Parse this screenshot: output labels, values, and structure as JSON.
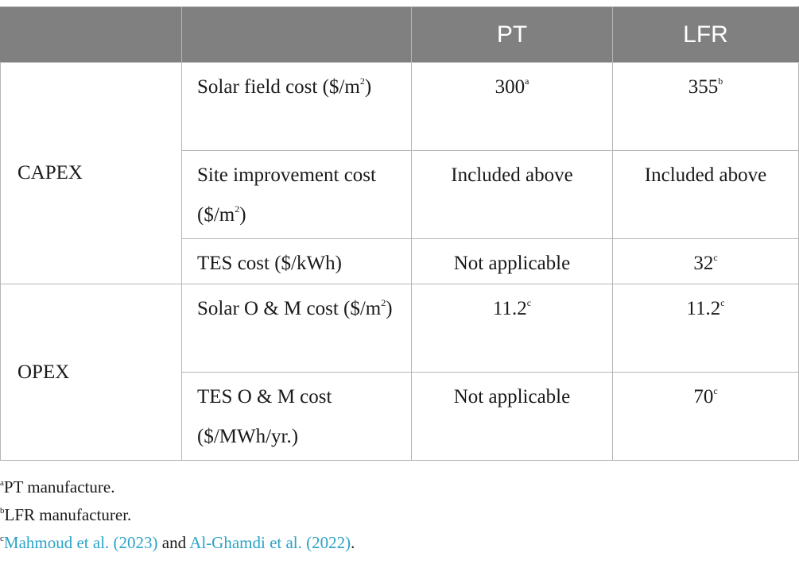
{
  "table": {
    "header": [
      "",
      "",
      "PT",
      "LFR"
    ],
    "groups": [
      {
        "label": "CAPEX",
        "rows": [
          {
            "item": "Solar field cost ($/m",
            "item_sup": "2",
            "item_tail": ")",
            "pt": "300",
            "pt_sup": "a",
            "lfr": "355",
            "lfr_sup": "b"
          },
          {
            "item": "Site improvement cost ($/m",
            "item_sup": "2",
            "item_tail": ")",
            "pt": "Included above",
            "pt_sup": "",
            "lfr": "Included above",
            "lfr_sup": ""
          },
          {
            "item": "TES cost ($/kWh)",
            "item_sup": "",
            "item_tail": "",
            "pt": "Not applicable",
            "pt_sup": "",
            "lfr": "32",
            "lfr_sup": "c"
          }
        ]
      },
      {
        "label": "OPEX",
        "rows": [
          {
            "item": "Solar O & M cost ($/m",
            "item_sup": "2",
            "item_tail": ")",
            "pt": "11.2",
            "pt_sup": "c",
            "lfr": "11.2",
            "lfr_sup": "c"
          },
          {
            "item": "TES O & M cost ($/MWh/yr.)",
            "item_sup": "",
            "item_tail": "",
            "pt": "Not applicable",
            "pt_sup": "",
            "lfr": "70",
            "lfr_sup": "c"
          }
        ]
      }
    ]
  },
  "footnotes": {
    "a": {
      "mark": "a",
      "text": "PT manufacture."
    },
    "b": {
      "mark": "b",
      "text": "LFR manufacturer."
    },
    "c": {
      "mark": "c",
      "ref1": "Mahmoud et al. (2023)",
      "joiner": " and ",
      "ref2": "Al-Ghamdi et al. (2022)",
      "tail": "."
    }
  },
  "colors": {
    "header_bg": "#808080",
    "header_text": "#ffffff",
    "border": "#b5b5b5",
    "link": "#2aa3c7"
  }
}
